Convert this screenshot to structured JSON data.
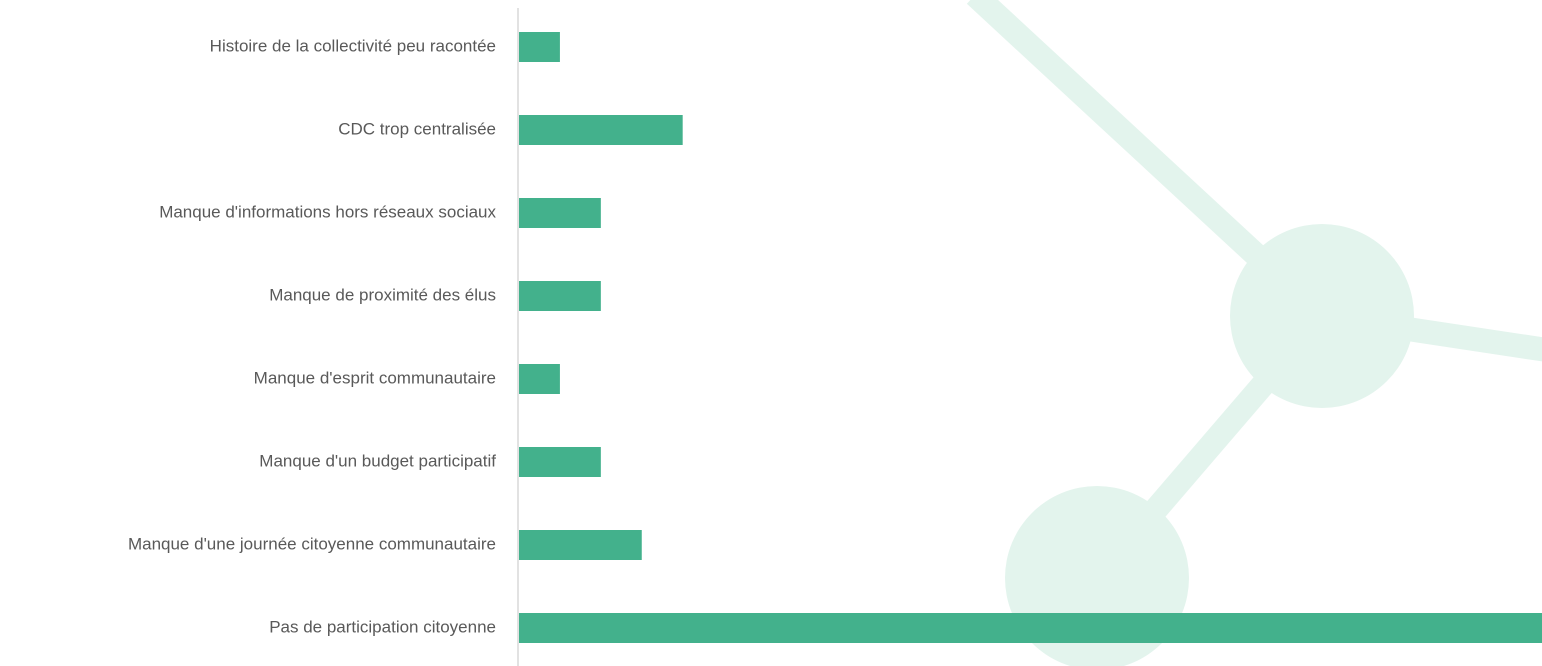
{
  "chart_data": {
    "type": "bar",
    "orientation": "horizontal",
    "categories": [
      "Histoire de la collectivité peu racontée",
      "CDC trop centralisée",
      "Manque d'informations hors réseaux sociaux",
      "Manque de proximité des élus",
      "Manque d'esprit communautaire",
      "Manque d'un budget participatif",
      "Manque d'une journée citoyenne communautaire",
      "Pas de participation citoyenne"
    ],
    "values": [
      1,
      4,
      2,
      2,
      1,
      2,
      3,
      25
    ],
    "color": "#43b18c"
  }
}
